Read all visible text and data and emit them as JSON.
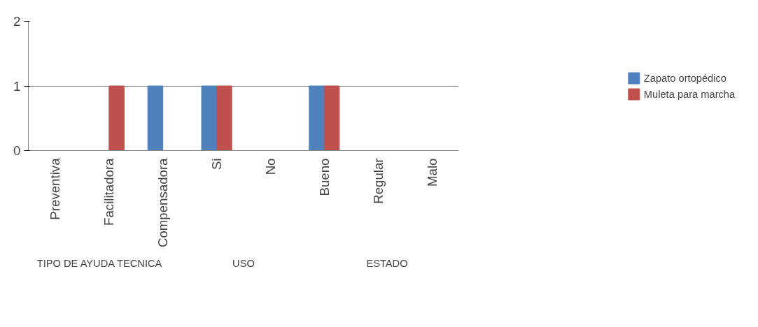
{
  "chart_data": {
    "type": "bar",
    "categories": [
      "Preventiva",
      "Facilitadora",
      "Compensadora",
      "Si",
      "No",
      "Bueno",
      "Regular",
      "Malo"
    ],
    "series": [
      {
        "name": "Zapato ortopédico",
        "color": "#4f81bd",
        "values": [
          0,
          0,
          1,
          1,
          0,
          1,
          0,
          0
        ]
      },
      {
        "name": "Muleta para marcha",
        "color": "#c0504d",
        "values": [
          0,
          1,
          0,
          1,
          0,
          1,
          0,
          0
        ]
      }
    ],
    "ylim": [
      0,
      2
    ],
    "yticks": [
      0,
      1,
      2
    ],
    "grid": "y",
    "legend": "right",
    "annotations": [
      "TIPO DE AYUDA TECNICA",
      "USO",
      "ESTADO"
    ]
  }
}
